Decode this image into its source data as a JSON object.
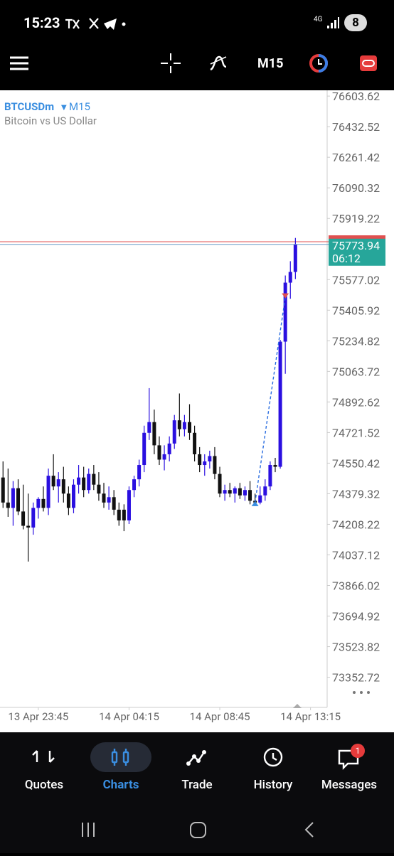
{
  "status_bar": {
    "time": "15:23",
    "network": "4G",
    "battery": "8"
  },
  "toolbar": {
    "timeframe": "M15"
  },
  "chart_data": {
    "type": "candlestick",
    "symbol": "BTCUSDm",
    "timeframe": "M15",
    "subtitle": "Bitcoin vs US Dollar",
    "bull_color": "#2a0fe0",
    "bear_color": "#111111",
    "candles": {
      "open": [
        74470,
        74330,
        74300,
        74410,
        74280,
        74200,
        74190,
        74300,
        74350,
        74300,
        74480,
        74420,
        74460,
        74380,
        74300,
        74430,
        74470,
        74400,
        74490,
        74430,
        74380,
        74330,
        74360,
        74290,
        74290,
        74230,
        74400,
        74460,
        74540,
        74720,
        74780,
        74650,
        74570,
        74600,
        74660,
        74790,
        74740,
        74780,
        74720,
        74600,
        74540,
        74560,
        74590,
        74490,
        74380,
        74400,
        74380,
        74410,
        74370,
        74400,
        74340,
        74330,
        74370,
        74420,
        74540,
        74530,
        75230,
        75560,
        75620
      ],
      "high": [
        74560,
        74520,
        74450,
        74460,
        74430,
        74380,
        74330,
        74360,
        74420,
        74520,
        74600,
        74500,
        74530,
        74420,
        74460,
        74540,
        74530,
        74520,
        74540,
        74500,
        74440,
        74420,
        74400,
        74330,
        74320,
        74420,
        74480,
        74570,
        74760,
        74970,
        74850,
        74700,
        74650,
        74700,
        74820,
        74940,
        74820,
        74880,
        74760,
        74640,
        74600,
        74620,
        74640,
        74530,
        74430,
        74440,
        74420,
        74440,
        74420,
        74450,
        74380,
        74420,
        74460,
        74560,
        74580,
        75240,
        75600,
        75680,
        75810
      ],
      "low": [
        74300,
        74250,
        74200,
        74260,
        74180,
        74000,
        74150,
        74240,
        74280,
        74260,
        74400,
        74330,
        74330,
        74260,
        74270,
        74380,
        74360,
        74380,
        74400,
        74340,
        74300,
        74290,
        74260,
        74200,
        74170,
        74210,
        74360,
        74420,
        74500,
        74680,
        74600,
        74540,
        74510,
        74560,
        74630,
        74700,
        74700,
        74680,
        74560,
        74500,
        74480,
        74520,
        74460,
        74360,
        74340,
        74360,
        74330,
        74350,
        74340,
        74320,
        74310,
        74320,
        74340,
        74400,
        74500,
        74520,
        75050,
        75470,
        75580
      ],
      "close": [
        74330,
        74300,
        74410,
        74280,
        74200,
        74190,
        74300,
        74350,
        74300,
        74480,
        74420,
        74460,
        74380,
        74300,
        74430,
        74470,
        74400,
        74490,
        74430,
        74380,
        74330,
        74360,
        74290,
        74230,
        74230,
        74400,
        74460,
        74540,
        74720,
        74780,
        74650,
        74570,
        74600,
        74660,
        74790,
        74740,
        74780,
        74720,
        74600,
        74540,
        74560,
        74590,
        74490,
        74380,
        74400,
        74380,
        74410,
        74370,
        74400,
        74340,
        74330,
        74370,
        74420,
        74540,
        74530,
        75230,
        75560,
        75620,
        75774
      ]
    },
    "ylim": [
      73180,
      76640
    ],
    "yticks": [
      76603.62,
      76432.52,
      76261.42,
      76090.32,
      75919.22,
      75577.02,
      75405.92,
      75234.82,
      75063.72,
      74892.62,
      74721.52,
      74550.42,
      74379.32,
      74208.22,
      74037.12,
      73866.02,
      73694.92,
      73523.82,
      73352.72
    ],
    "xlim": [
      -0.6,
      64.3
    ],
    "xticks": [
      {
        "value": 7,
        "label": "13 Apr 23:45"
      },
      {
        "value": 25,
        "label": "14 Apr 04:15"
      },
      {
        "value": 43,
        "label": "14 Apr 08:45"
      },
      {
        "value": 61,
        "label": "14 Apr 13:15"
      }
    ],
    "current_price": 75773.94,
    "countdown": "06:12"
  },
  "nav": {
    "items": [
      "Quotes",
      "Charts",
      "Trade",
      "History",
      "Messages"
    ],
    "badge": "1"
  }
}
